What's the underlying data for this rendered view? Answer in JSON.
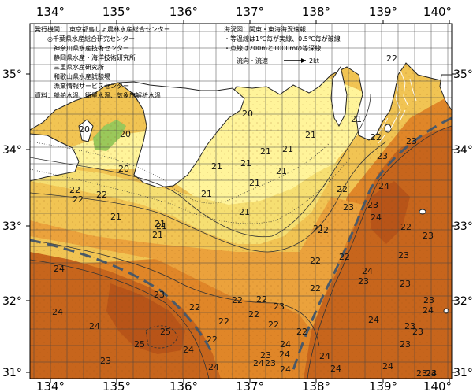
{
  "map": {
    "lon_labels": [
      "134°",
      "135°",
      "136°",
      "137°",
      "138°",
      "139°",
      "140°"
    ],
    "lat_labels": [
      "35°",
      "34°",
      "33°",
      "32°",
      "31°"
    ],
    "issuers_heading": "発行機関：",
    "issuers": [
      "東京都島しょ農林水産総合センター",
      "◎千葉県水産総合研究センター",
      "神奈川県水産技術センター",
      "静岡県水産・海洋技術研究所",
      "三重県水産研究所",
      "和歌山県水産試験場",
      "漁業情報サービスセンター"
    ],
    "sources": "資料：船舶水温、衛星水温、気象庁解析水温",
    "legend_title": "海況図：関東・東海海況速報",
    "legend_notes": [
      "・等温線は1℃毎が実線、0.5℃毎が破線",
      "・点線は200mと1000mの等深線"
    ],
    "current_label": "流向・流速",
    "current_scale": "2kt",
    "isotherm_labels": [
      "20",
      "20",
      "20",
      "20",
      "22",
      "22",
      "22",
      "21",
      "21",
      "21",
      "21",
      "21",
      "21",
      "21",
      "21",
      "21",
      "21",
      "21",
      "21",
      "21",
      "22",
      "22",
      "23",
      "22",
      "23",
      "24",
      "23",
      "22",
      "23",
      "24",
      "22",
      "23",
      "22",
      "24",
      "24",
      "23",
      "24",
      "22",
      "22",
      "22",
      "22",
      "23",
      "22",
      "22",
      "22",
      "23",
      "22",
      "23",
      "23",
      "24",
      "23",
      "22",
      "23",
      "23",
      "23",
      "24",
      "24",
      "25",
      "25",
      "24",
      "24",
      "24",
      "23",
      "24",
      "23",
      "24",
      "24",
      "23",
      "23",
      "24",
      "24",
      "24",
      "24",
      "21",
      "22",
      "23",
      "21"
    ],
    "colors": {
      "land": "#ffffff",
      "t20": "#9ac85a",
      "t21": "#fff49a",
      "t21_5": "#f6df72",
      "t22": "#f1c453",
      "t22_5": "#eba23c",
      "t23": "#e08628",
      "t23_5": "#d4731f",
      "t24": "#c7651c",
      "t24_5": "#b85418",
      "current_arrows": "#ffffff",
      "kuroshio_axis": "#4a5a6a",
      "grid": "#444444"
    }
  }
}
